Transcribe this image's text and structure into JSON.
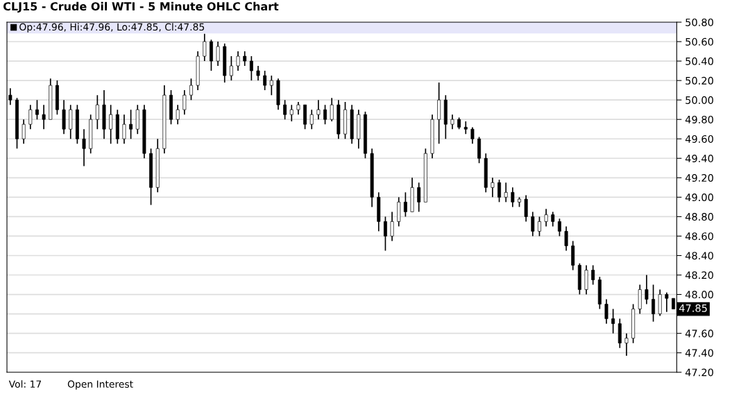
{
  "chart_data": {
    "type": "candlestick",
    "title": "CLJ15 - Crude Oil WTI - 5 Minute OHLC Chart",
    "categories": [
      null,
      null,
      null,
      null,
      null,
      null,
      null,
      null,
      null,
      null,
      null,
      null,
      null,
      null,
      null,
      null,
      null,
      null,
      null,
      null,
      null,
      null,
      null,
      null,
      null,
      null,
      null,
      null,
      null,
      null,
      null,
      null,
      null,
      null,
      null,
      null,
      null,
      null,
      null,
      null,
      null,
      null,
      null,
      null,
      null,
      null,
      null,
      null,
      null,
      null,
      null,
      null,
      null,
      null,
      null,
      null,
      null,
      null,
      null,
      null,
      null,
      null,
      null,
      null,
      null,
      null,
      null,
      null,
      null,
      null,
      null,
      null,
      null,
      null,
      null,
      null,
      null,
      null,
      null,
      null,
      null,
      null,
      null,
      null,
      null,
      null,
      null,
      null,
      null,
      null,
      null,
      null,
      null,
      null,
      null,
      null,
      null,
      null,
      null,
      null
    ],
    "ohlc": [
      [
        50.05,
        50.12,
        49.95,
        50.0
      ],
      [
        50.0,
        50.02,
        49.5,
        49.6
      ],
      [
        49.6,
        49.8,
        49.55,
        49.75
      ],
      [
        49.75,
        49.95,
        49.7,
        49.9
      ],
      [
        49.9,
        50.0,
        49.8,
        49.85
      ],
      [
        49.85,
        49.95,
        49.7,
        49.8
      ],
      [
        49.8,
        50.22,
        49.8,
        50.15
      ],
      [
        50.15,
        50.2,
        49.85,
        49.9
      ],
      [
        49.9,
        50.0,
        49.65,
        49.7
      ],
      [
        49.7,
        49.95,
        49.6,
        49.9
      ],
      [
        49.9,
        49.95,
        49.55,
        49.6
      ],
      [
        49.6,
        49.7,
        49.32,
        49.5
      ],
      [
        49.5,
        49.85,
        49.45,
        49.8
      ],
      [
        49.8,
        50.05,
        49.7,
        49.95
      ],
      [
        49.95,
        50.1,
        49.6,
        49.7
      ],
      [
        49.7,
        49.95,
        49.55,
        49.85
      ],
      [
        49.85,
        49.9,
        49.55,
        49.6
      ],
      [
        49.6,
        49.85,
        49.55,
        49.75
      ],
      [
        49.75,
        49.9,
        49.6,
        49.7
      ],
      [
        49.7,
        49.95,
        49.65,
        49.9
      ],
      [
        49.9,
        49.95,
        49.4,
        49.45
      ],
      [
        49.45,
        49.5,
        48.92,
        49.1
      ],
      [
        49.1,
        49.6,
        49.05,
        49.5
      ],
      [
        49.5,
        50.15,
        49.45,
        50.05
      ],
      [
        50.05,
        50.1,
        49.75,
        49.8
      ],
      [
        49.8,
        49.95,
        49.75,
        49.9
      ],
      [
        49.9,
        50.1,
        49.85,
        50.05
      ],
      [
        50.05,
        50.22,
        50.0,
        50.15
      ],
      [
        50.15,
        50.5,
        50.1,
        50.45
      ],
      [
        50.45,
        50.68,
        50.4,
        50.6
      ],
      [
        50.6,
        50.62,
        50.3,
        50.4
      ],
      [
        50.4,
        50.6,
        50.35,
        50.55
      ],
      [
        50.55,
        50.58,
        50.18,
        50.25
      ],
      [
        50.25,
        50.45,
        50.2,
        50.35
      ],
      [
        50.35,
        50.5,
        50.3,
        50.45
      ],
      [
        50.45,
        50.5,
        50.35,
        50.4
      ],
      [
        50.4,
        50.45,
        50.2,
        50.3
      ],
      [
        50.3,
        50.35,
        50.2,
        50.25
      ],
      [
        50.25,
        50.3,
        50.1,
        50.15
      ],
      [
        50.15,
        50.25,
        50.05,
        50.2
      ],
      [
        50.2,
        50.22,
        49.9,
        49.95
      ],
      [
        49.95,
        50.0,
        49.8,
        49.85
      ],
      [
        49.85,
        49.95,
        49.78,
        49.9
      ],
      [
        49.9,
        49.98,
        49.85,
        49.95
      ],
      [
        49.95,
        49.95,
        49.7,
        49.75
      ],
      [
        49.75,
        49.9,
        49.7,
        49.85
      ],
      [
        49.85,
        50.0,
        49.8,
        49.9
      ],
      [
        49.9,
        49.95,
        49.75,
        49.8
      ],
      [
        49.8,
        50.02,
        49.78,
        49.95
      ],
      [
        49.95,
        50.0,
        49.6,
        49.65
      ],
      [
        49.65,
        49.98,
        49.6,
        49.9
      ],
      [
        49.9,
        49.95,
        49.55,
        49.6
      ],
      [
        49.6,
        49.9,
        49.5,
        49.85
      ],
      [
        49.85,
        49.88,
        49.4,
        49.45
      ],
      [
        49.45,
        49.5,
        48.9,
        49.0
      ],
      [
        49.0,
        49.05,
        48.65,
        48.75
      ],
      [
        48.75,
        48.8,
        48.45,
        48.6
      ],
      [
        48.6,
        48.85,
        48.55,
        48.75
      ],
      [
        48.75,
        49.0,
        48.7,
        48.95
      ],
      [
        48.95,
        49.05,
        48.8,
        48.85
      ],
      [
        48.85,
        49.2,
        48.85,
        49.1
      ],
      [
        49.1,
        49.15,
        48.85,
        48.95
      ],
      [
        48.95,
        49.5,
        48.95,
        49.45
      ],
      [
        49.45,
        49.85,
        49.4,
        49.8
      ],
      [
        49.8,
        50.18,
        49.55,
        50.0
      ],
      [
        50.0,
        50.05,
        49.6,
        49.75
      ],
      [
        49.75,
        49.85,
        49.7,
        49.8
      ],
      [
        49.8,
        49.82,
        49.7,
        49.72
      ],
      [
        49.72,
        49.78,
        49.65,
        49.7
      ],
      [
        49.7,
        49.72,
        49.55,
        49.6
      ],
      [
        49.6,
        49.62,
        49.35,
        49.4
      ],
      [
        49.4,
        49.45,
        49.05,
        49.1
      ],
      [
        49.1,
        49.2,
        49.0,
        49.15
      ],
      [
        49.15,
        49.18,
        48.95,
        49.0
      ],
      [
        49.0,
        49.15,
        48.95,
        49.05
      ],
      [
        49.05,
        49.1,
        48.9,
        48.95
      ],
      [
        48.95,
        49.0,
        48.9,
        48.98
      ],
      [
        48.98,
        49.02,
        48.75,
        48.8
      ],
      [
        48.8,
        48.85,
        48.6,
        48.65
      ],
      [
        48.65,
        48.8,
        48.6,
        48.75
      ],
      [
        48.75,
        48.88,
        48.7,
        48.82
      ],
      [
        48.82,
        48.85,
        48.7,
        48.75
      ],
      [
        48.75,
        48.78,
        48.6,
        48.65
      ],
      [
        48.65,
        48.7,
        48.45,
        48.5
      ],
      [
        48.5,
        48.55,
        48.25,
        48.3
      ],
      [
        48.3,
        48.32,
        48.0,
        48.05
      ],
      [
        48.05,
        48.3,
        48.0,
        48.25
      ],
      [
        48.25,
        48.3,
        48.1,
        48.15
      ],
      [
        48.15,
        48.18,
        47.85,
        47.9
      ],
      [
        47.9,
        47.95,
        47.7,
        47.75
      ],
      [
        47.75,
        47.85,
        47.6,
        47.7
      ],
      [
        47.7,
        47.75,
        47.45,
        47.5
      ],
      [
        47.5,
        47.6,
        47.37,
        47.55
      ],
      [
        47.55,
        47.9,
        47.5,
        47.85
      ],
      [
        47.85,
        48.1,
        47.8,
        48.05
      ],
      [
        48.05,
        48.2,
        47.9,
        47.95
      ],
      [
        47.95,
        48.1,
        47.72,
        47.8
      ],
      [
        47.8,
        48.05,
        47.78,
        48.0
      ],
      [
        48.0,
        48.02,
        47.82,
        47.96
      ],
      [
        47.96,
        47.96,
        47.85,
        47.85
      ]
    ],
    "color": "#000000",
    "ylim": [
      47.2,
      50.8
    ],
    "yticks": [
      {
        "value": 47.2,
        "label": "47.20"
      },
      {
        "value": 47.4,
        "label": "47.40"
      },
      {
        "value": 47.6,
        "label": "47.60"
      },
      {
        "value": 47.8,
        "label": null
      },
      {
        "value": 48.0,
        "label": "48.00"
      },
      {
        "value": 48.2,
        "label": "48.20"
      },
      {
        "value": 48.4,
        "label": "48.40"
      },
      {
        "value": 48.6,
        "label": "48.60"
      },
      {
        "value": 48.8,
        "label": "48.80"
      },
      {
        "value": 49.0,
        "label": "49.00"
      },
      {
        "value": 49.2,
        "label": "49.20"
      },
      {
        "value": 49.4,
        "label": "49.40"
      },
      {
        "value": 49.6,
        "label": "49.60"
      },
      {
        "value": 49.8,
        "label": "49.80"
      },
      {
        "value": 50.0,
        "label": "50.00"
      },
      {
        "value": 50.2,
        "label": "50.20"
      },
      {
        "value": 50.4,
        "label": "50.40"
      },
      {
        "value": 50.6,
        "label": "50.60"
      },
      {
        "value": 50.8,
        "label": "50.80"
      }
    ],
    "grid": "y",
    "annotations": [
      "Op:47.96, Hi:47.96, Lo:47.85, Cl:47.85",
      "47.85",
      "Vol: 17",
      "Open Interest"
    ]
  }
}
